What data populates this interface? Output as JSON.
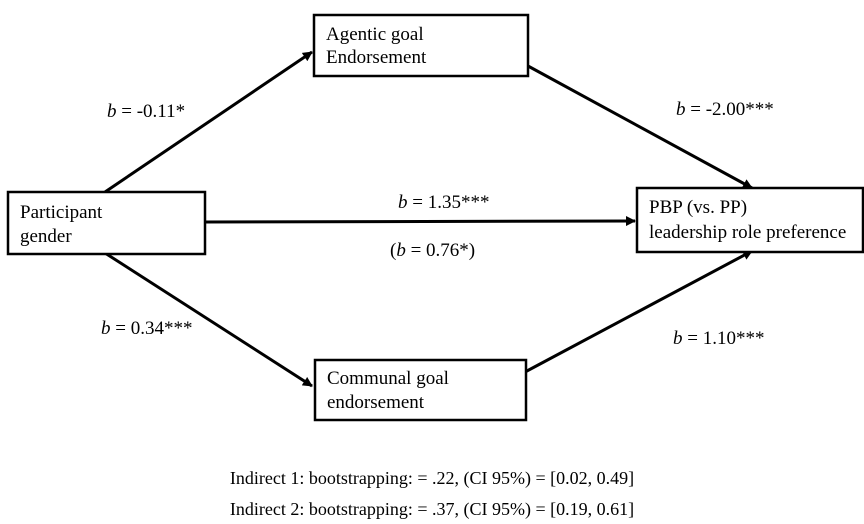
{
  "nodes": {
    "gender": {
      "lines": [
        "Participant",
        "gender"
      ]
    },
    "agentic": {
      "lines": [
        "Agentic goal",
        "Endorsement"
      ]
    },
    "communal": {
      "lines": [
        "Communal goal",
        "endorsement"
      ]
    },
    "outcome": {
      "lines": [
        "PBP (vs. PP)",
        "leadership role preference"
      ]
    }
  },
  "paths": {
    "gender_agentic": {
      "symbol": "b",
      "rest": " = -0.11*"
    },
    "agentic_outcome": {
      "symbol": "b",
      "rest": " = -2.00***"
    },
    "gender_outcome_total": {
      "symbol": "b",
      "rest": " = 1.35***"
    },
    "gender_outcome_direct": {
      "pre": "(",
      "symbol": "b",
      "rest": " = 0.76*)"
    },
    "gender_communal": {
      "symbol": "b",
      "rest": " = 0.34***"
    },
    "communal_outcome": {
      "symbol": "b",
      "rest": " = 1.10***"
    }
  },
  "indirect_effects": [
    "Indirect 1: bootstrapping: = .22, (CI 95%) = [0.02, 0.49]",
    "Indirect 2: bootstrapping: = .37, (CI 95%) = [0.19, 0.61]"
  ]
}
